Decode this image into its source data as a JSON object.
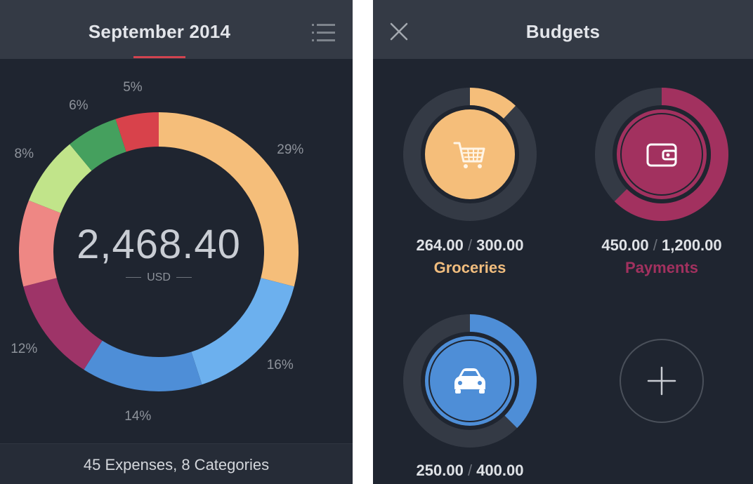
{
  "overview": {
    "title": "September 2014",
    "menu_icon": "list-icon",
    "total_value": "2,468.40",
    "currency": "USD",
    "footer": "45 Expenses, 8 Categories",
    "segments": [
      {
        "label": "29%",
        "percent": 29,
        "color": "#f5be7a"
      },
      {
        "label": "16%",
        "percent": 16,
        "color": "#6cb0ee"
      },
      {
        "label": "14%",
        "percent": 14,
        "color": "#4e8ed7"
      },
      {
        "label": "12%",
        "percent": 12,
        "color": "#9e3468"
      },
      {
        "label": "%",
        "percent": 10,
        "color": "#ee8784"
      },
      {
        "label": "8%",
        "percent": 8,
        "color": "#c1e48a"
      },
      {
        "label": "6%",
        "percent": 6,
        "color": "#45a05e"
      },
      {
        "label": "5%",
        "percent": 5,
        "color": "#d8424b"
      }
    ]
  },
  "budgets": {
    "title": "Budgets",
    "close_icon": "close-icon",
    "items": [
      {
        "spent": "264.00",
        "limit": "300.00",
        "name": "Groceries",
        "fraction": 0.12,
        "color": "#f5be7a",
        "icon": "cart-icon"
      },
      {
        "spent": "450.00",
        "limit": "1,200.00",
        "name": "Payments",
        "fraction": 0.625,
        "color": "#a2315f",
        "icon": "wallet-icon"
      },
      {
        "spent": "250.00",
        "limit": "400.00",
        "name": "",
        "fraction": 0.375,
        "color": "#4e8ed7",
        "icon": "car-icon"
      }
    ],
    "add_icon": "plus-icon"
  }
}
